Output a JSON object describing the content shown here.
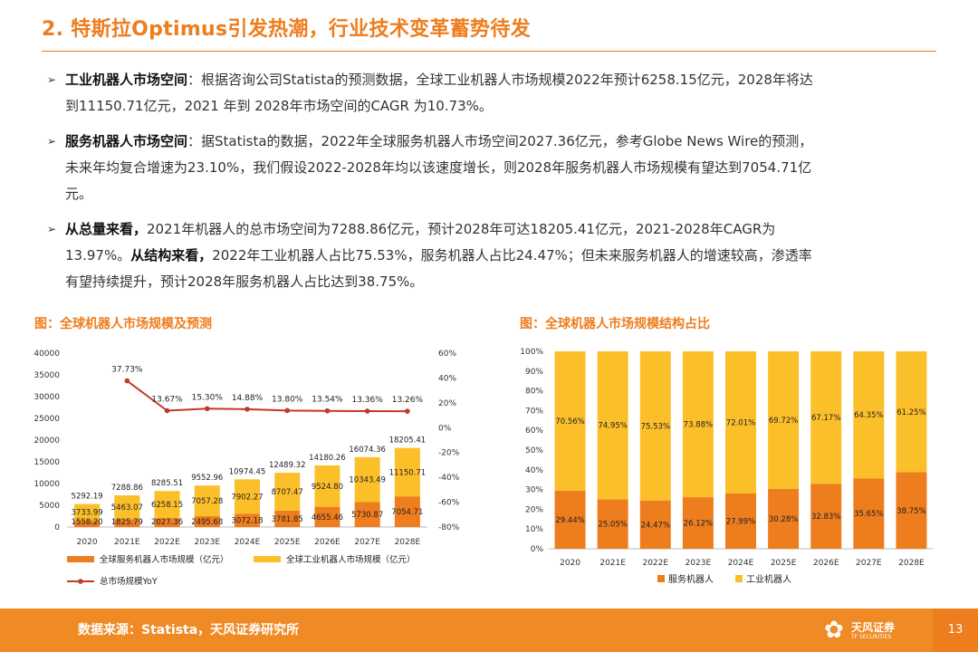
{
  "header": {
    "title": "2. 特斯拉Optimus引发热潮，行业技术变革蓄势待发"
  },
  "bullets": [
    {
      "lines": [
        {
          "bold": "工业机器人市场空间",
          "text": "：根据咨询公司Statista的预测数据，全球工业机器人市场规模2022年预计6258.15亿元，2028年将达"
        },
        {
          "bold": "",
          "text": "到11150.71亿元，2021 年到 2028年市场空间的CAGR 为10.73%。"
        }
      ]
    },
    {
      "lines": [
        {
          "bold": "服务机器人市场空间",
          "text": "：据Statista的数据，2022年全球服务机器人市场空间2027.36亿元，参考Globe News Wire的预测，"
        },
        {
          "bold": "",
          "text": "未来年均复合增速为23.10%，我们假设2022-2028年均以该速度增长，则2028年服务机器人市场规模有望达到7054.71亿"
        },
        {
          "bold": "",
          "text": "元。"
        }
      ]
    },
    {
      "lines": [
        {
          "bold": "从总量来看，",
          "text": "2021年机器人的总市场空间为7288.86亿元，预计2028年可达18205.41亿元，2021-2028年CAGR为"
        },
        {
          "bold": "",
          "text": "13.97%。",
          "bold2": "从结构来看，",
          "text2": "2022年工业机器人占比75.53%，服务机器人占比24.47%；但未来服务机器人的增速较高，渗透率"
        },
        {
          "bold": "",
          "text": "有望持续提升，预计2028年服务机器人占比达到38.75%。"
        }
      ]
    }
  ],
  "footer": {
    "source": "数据来源：Statista，天风证券研究所",
    "logo_name": "天风证券",
    "logo_sub": "TF SECURITIES",
    "page_number": "13"
  },
  "colors": {
    "accent": "#ee7d1e",
    "service": "#ee7d1e",
    "industrial": "#fbbf2a",
    "yoy": "#c0392b"
  },
  "chart_data": [
    {
      "type": "bar",
      "title": "图：全球机器人市场规模及预测",
      "stacked": true,
      "categories": [
        "2020",
        "2021E",
        "2022E",
        "2023E",
        "2024E",
        "2025E",
        "2026E",
        "2027E",
        "2028E"
      ],
      "series": [
        {
          "name": "全球服务机器人市场规模（亿元）",
          "values": [
            1558.2,
            1825.79,
            2027.36,
            2495.68,
            3072.18,
            3781.85,
            4655.46,
            5730.87,
            7054.71
          ]
        },
        {
          "name": "全球工业机器人市场规模（亿元）",
          "values": [
            3733.99,
            5463.07,
            6258.15,
            7057.28,
            7902.27,
            8707.47,
            9524.8,
            10343.49,
            11150.71
          ]
        }
      ],
      "totals": [
        5292.19,
        7288.86,
        8285.51,
        9552.96,
        10974.45,
        12489.32,
        14180.26,
        16074.36,
        18205.41
      ],
      "line_series": {
        "name": "总市场规模YoY",
        "values": [
          null,
          37.73,
          13.67,
          15.3,
          14.88,
          13.8,
          13.54,
          13.36,
          13.26
        ]
      },
      "ylim": [
        0,
        40000
      ],
      "yticks": [
        "0",
        "5000",
        "10000",
        "15000",
        "20000",
        "25000",
        "30000",
        "35000",
        "40000"
      ],
      "y2lim": [
        -80,
        60
      ],
      "y2ticks": [
        "-80%",
        "-60%",
        "-40%",
        "-20%",
        "0%",
        "20%",
        "40%",
        "60%"
      ],
      "legend": "bottom"
    },
    {
      "type": "bar",
      "title": "图：全球机器人市场规模结构占比",
      "stacked": true,
      "percent": true,
      "categories": [
        "2020",
        "2021E",
        "2022E",
        "2023E",
        "2024E",
        "2025E",
        "2026E",
        "2027E",
        "2028E"
      ],
      "series": [
        {
          "name": "服务机器人",
          "values": [
            29.44,
            25.05,
            24.47,
            26.12,
            27.99,
            30.28,
            32.83,
            35.65,
            38.75
          ]
        },
        {
          "name": "工业机器人",
          "values": [
            70.56,
            74.95,
            75.53,
            73.88,
            72.01,
            69.72,
            67.17,
            64.35,
            61.25
          ]
        }
      ],
      "ylim": [
        0,
        100
      ],
      "yticks": [
        "0%",
        "10%",
        "20%",
        "30%",
        "40%",
        "50%",
        "60%",
        "70%",
        "80%",
        "90%",
        "100%"
      ],
      "legend": "bottom"
    }
  ]
}
